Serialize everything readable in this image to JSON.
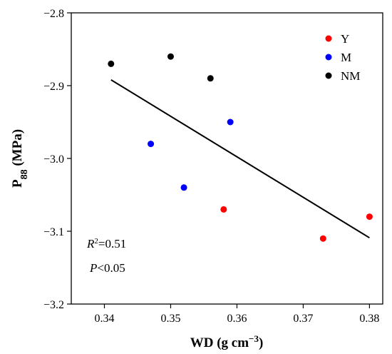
{
  "chart_data": {
    "type": "scatter",
    "xlabel": "WD (g cm−3)",
    "xlabel_main": "WD (g cm",
    "xlabel_sup": "−3",
    "xlabel_close": ")",
    "ylabel": "P88 (MPa)",
    "ylabel_main": "P",
    "ylabel_sub": "88",
    "ylabel_rest": " (MPa)",
    "xlim": [
      0.335,
      0.382
    ],
    "ylim": [
      -3.2,
      -2.8
    ],
    "xticks": [
      0.34,
      0.35,
      0.36,
      0.37,
      0.38
    ],
    "xtick_labels": [
      "0.34",
      "0.35",
      "0.36",
      "0.37",
      "0.38"
    ],
    "yticks": [
      -3.2,
      -3.1,
      -3.0,
      -2.9,
      -2.8
    ],
    "ytick_labels": [
      "−3.2",
      "−3.1",
      "−3.0",
      "−2.9",
      "−2.8"
    ],
    "grid": false,
    "legend_position": "top-right",
    "series": [
      {
        "name": "Y",
        "color": "#ff0000",
        "x": [
          0.358,
          0.373,
          0.38
        ],
        "y": [
          -3.07,
          -3.11,
          -3.08
        ]
      },
      {
        "name": "M",
        "color": "#0000ff",
        "x": [
          0.347,
          0.352,
          0.359
        ],
        "y": [
          -2.98,
          -3.04,
          -2.95
        ]
      },
      {
        "name": "NM",
        "color": "#000000",
        "x": [
          0.341,
          0.35,
          0.356
        ],
        "y": [
          -2.87,
          -2.86,
          -2.89
        ]
      }
    ],
    "regression_line": {
      "x": [
        0.341,
        0.38
      ],
      "y": [
        -2.892,
        -3.109
      ]
    },
    "annotations": {
      "r2_var": "R",
      "r2_sup": "2",
      "r2_val": "=0.51",
      "p_var": "P",
      "p_val": "<0.05"
    }
  }
}
